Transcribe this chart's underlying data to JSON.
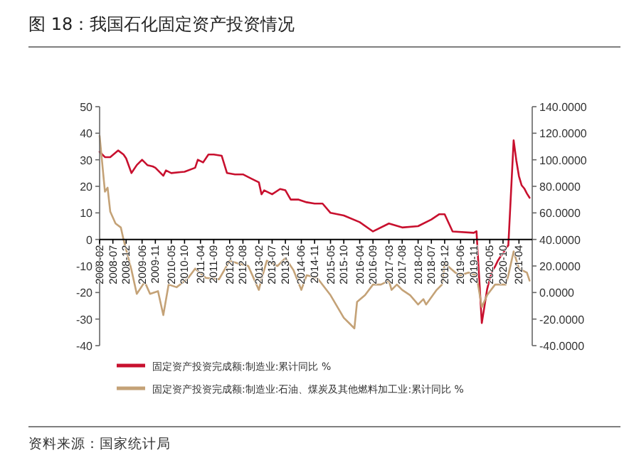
{
  "chart_data": {
    "type": "line",
    "title": "图 18：我国石化固定资产投资情况",
    "annotations": [
      "资料来源：国家统计局"
    ],
    "xlim": [
      "2008-02",
      "2021-09"
    ],
    "xticks": [
      "2008-02",
      "2008-07",
      "2008-12",
      "2009-06",
      "2009-11",
      "2010-05",
      "2010-10",
      "2011-04",
      "2011-09",
      "2012-03",
      "2012-08",
      "2013-02",
      "2013-07",
      "2013-12",
      "2014-06",
      "2014-11",
      "2015-05",
      "2015-10",
      "2016-04",
      "2016-09",
      "2017-03",
      "2017-08",
      "2018-02",
      "2018-07",
      "2018-12",
      "2019-06",
      "2019-11",
      "2020-05",
      "2020-10",
      "2021-04"
    ],
    "ylim": [
      -40,
      50
    ],
    "yticks": [
      -40,
      -30,
      -20,
      -10,
      0,
      10,
      20,
      30,
      40,
      50
    ],
    "y2lim": [
      -40,
      140
    ],
    "y2ticks": [
      {
        "value": -40,
        "label": "-40.0000"
      },
      {
        "value": -20,
        "label": "-20.0000"
      },
      {
        "value": 0,
        "label": "0.0000"
      },
      {
        "value": 20,
        "label": "20.0000"
      },
      {
        "value": 40,
        "label": "40.0000"
      },
      {
        "value": 60,
        "label": "60.0000"
      },
      {
        "value": 80,
        "label": "80.0000"
      },
      {
        "value": 100,
        "label": "100.0000"
      },
      {
        "value": 120,
        "label": "120.0000"
      },
      {
        "value": 140,
        "label": "140.0000"
      }
    ],
    "legend": "bottom",
    "grid": false,
    "marker": "none",
    "line_style": "solid",
    "series": [
      {
        "name": "固定资产投资完成额:制造业:累计同比 %",
        "color": "#c8102e",
        "axis": "y",
        "x": [
          "2008-02",
          "2008-04",
          "2008-06",
          "2008-09",
          "2008-11",
          "2008-12",
          "2009-02",
          "2009-04",
          "2009-06",
          "2009-08",
          "2009-10",
          "2009-11",
          "2010-02",
          "2010-03",
          "2010-05",
          "2010-10",
          "2011-02",
          "2011-03",
          "2011-05",
          "2011-07",
          "2011-09",
          "2011-12",
          "2012-02",
          "2012-05",
          "2012-08",
          "2012-11",
          "2013-02",
          "2013-03",
          "2013-04",
          "2013-07",
          "2013-10",
          "2013-12",
          "2014-02",
          "2014-05",
          "2014-08",
          "2014-11",
          "2015-02",
          "2015-05",
          "2015-10",
          "2016-04",
          "2016-09",
          "2017-03",
          "2017-08",
          "2018-02",
          "2018-07",
          "2018-10",
          "2018-12",
          "2019-03",
          "2019-11",
          "2019-12",
          "2020-02",
          "2020-03",
          "2020-04",
          "2020-05",
          "2020-06",
          "2020-07",
          "2020-08",
          "2020-09",
          "2020-10",
          "2020-11",
          "2020-12",
          "2021-02",
          "2021-03",
          "2021-04",
          "2021-05",
          "2021-06",
          "2021-07",
          "2021-08"
        ],
        "values": [
          33,
          31,
          31,
          33.5,
          32,
          30.5,
          25,
          28,
          30,
          28,
          27.5,
          27,
          24,
          26,
          25,
          25.5,
          27,
          30,
          29,
          32,
          32,
          31.5,
          25,
          24.5,
          24.5,
          23,
          21.5,
          17,
          18.5,
          17,
          19,
          18.5,
          15,
          15,
          14,
          13.5,
          13.5,
          10,
          9,
          6.5,
          3,
          6,
          4.5,
          5,
          7.5,
          9.5,
          9.5,
          3,
          2.5,
          3.1,
          -31.5,
          -25.2,
          -18.8,
          -14.8,
          -11.7,
          -10.2,
          -8.1,
          -6.5,
          -5.3,
          -3.5,
          -2.2,
          37.3,
          29.8,
          23.8,
          20.4,
          19.2,
          17.3,
          15.7
        ]
      },
      {
        "name": "固定资产投资完成额:制造业:石油、煤炭及其他燃料加工业:累计同比 %",
        "color": "#c4a277",
        "axis": "y2",
        "x": [
          "2008-02",
          "2008-04",
          "2008-05",
          "2008-06",
          "2008-08",
          "2008-10",
          "2008-11",
          "2009-02",
          "2009-04",
          "2009-07",
          "2009-09",
          "2009-12",
          "2010-02",
          "2010-04",
          "2010-07",
          "2010-11",
          "2011-02",
          "2011-06",
          "2011-11",
          "2012-03",
          "2012-06",
          "2012-10",
          "2013-02",
          "2013-03",
          "2013-05",
          "2013-09",
          "2013-12",
          "2014-03",
          "2014-06",
          "2014-08",
          "2014-12",
          "2015-05",
          "2015-10",
          "2015-12",
          "2016-02",
          "2016-03",
          "2016-06",
          "2016-09",
          "2016-12",
          "2017-03",
          "2017-04",
          "2017-06",
          "2017-08",
          "2017-11",
          "2018-02",
          "2018-04",
          "2018-05",
          "2018-09",
          "2018-11",
          "2018-12",
          "2019-04",
          "2019-06",
          "2019-09",
          "2019-12",
          "2020-02",
          "2020-04",
          "2020-07",
          "2020-11",
          "2020-12",
          "2021-02",
          "2021-04",
          "2021-07",
          "2021-08"
        ],
        "values": [
          118,
          76,
          79,
          61,
          52,
          49,
          40,
          17,
          -1,
          8,
          -1,
          1,
          -17,
          6,
          4,
          10,
          18,
          11,
          10,
          24,
          22,
          20,
          2,
          10,
          24,
          20,
          26,
          17,
          2,
          13,
          11,
          -2,
          -19,
          -23,
          -27,
          -7,
          -2,
          6,
          6,
          9,
          2,
          6,
          2,
          -2,
          -9,
          -5,
          -9,
          2,
          6,
          22,
          15,
          13,
          15,
          13,
          -11,
          -2,
          6,
          6,
          13,
          31,
          18,
          15,
          9
        ]
      }
    ]
  }
}
